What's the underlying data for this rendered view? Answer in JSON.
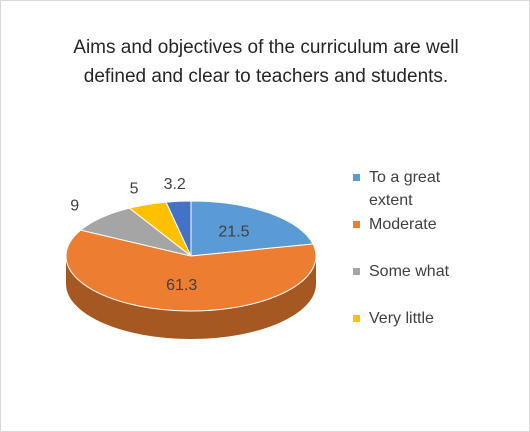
{
  "chart_data": {
    "type": "pie",
    "title": "Aims and objectives of the curriculum are well defined and clear to teachers and students.",
    "categories": [
      "To a great extent",
      "Moderate",
      "Some what",
      "Very little",
      null
    ],
    "values": [
      21.5,
      61.3,
      9,
      5,
      3.2
    ],
    "colors": [
      "#5b9bd5",
      "#ed7d31",
      "#a5a5a5",
      "#ffc000",
      "#4472c4"
    ],
    "legend": "right"
  }
}
